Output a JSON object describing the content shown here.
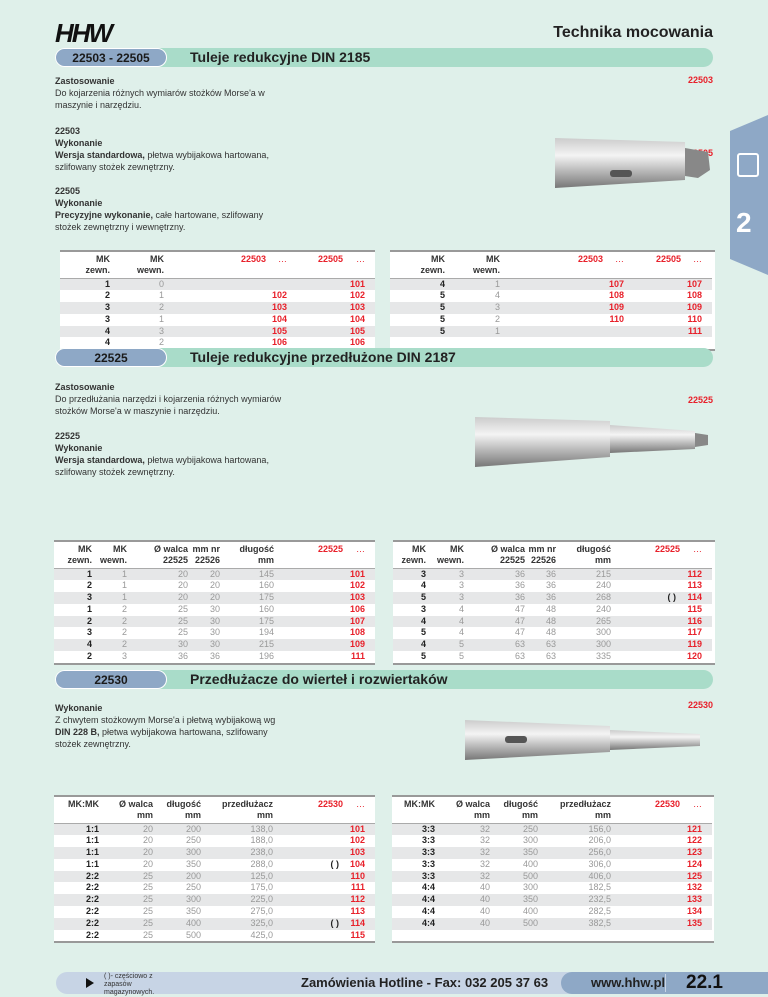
{
  "header": {
    "logo": "HHW",
    "category": "Technika mocowania"
  },
  "side_tab": {
    "number": "2",
    "icon": "chuck-icon",
    "color": "#8ea8c6"
  },
  "colors": {
    "background": "#dff0ea",
    "section_bar": "#a9dcc9",
    "section_pill": "#8ea8c6",
    "code_red": "#e8202a"
  },
  "sections": [
    {
      "codes": "22503 - 22505",
      "title": "Tuleje redukcyjne DIN 2185",
      "app_label": "Zastosowanie",
      "app_text": "Do kojarzenia różnych wymiarów stożków Morse'a w maszynie i narzędziu.",
      "variants": [
        {
          "code": "22503",
          "label": "Wykonanie",
          "bold": "Wersja standardowa,",
          "text": " płetwa wybijakowa hartowana, szlifowany stożek zewnętrzny."
        },
        {
          "code": "22505",
          "label": "Wykonanie",
          "bold": "Precyzyjne wykonanie,",
          "text": " całe hartowane, szlifowany stożek zewnętrzny i wewnętrzny."
        }
      ],
      "image_labels": [
        "22503",
        "22505"
      ],
      "table": {
        "headers": [
          [
            "MK",
            "zewn."
          ],
          [
            "MK",
            "wewn."
          ],
          [
            "22503",
            ""
          ],
          [
            "…",
            ""
          ],
          [
            "22505",
            ""
          ],
          [
            "…",
            ""
          ]
        ],
        "left": [
          [
            "1",
            "0",
            "",
            "",
            "",
            "101"
          ],
          [
            "2",
            "1",
            "",
            "102",
            "",
            "102"
          ],
          [
            "3",
            "2",
            "",
            "103",
            "",
            "103"
          ],
          [
            "3",
            "1",
            "",
            "104",
            "",
            "104"
          ],
          [
            "4",
            "3",
            "",
            "105",
            "",
            "105"
          ],
          [
            "4",
            "2",
            "",
            "106",
            "",
            "106"
          ]
        ],
        "right": [
          [
            "4",
            "1",
            "",
            "107",
            "",
            "107"
          ],
          [
            "5",
            "4",
            "",
            "108",
            "",
            "108"
          ],
          [
            "5",
            "3",
            "",
            "109",
            "",
            "109"
          ],
          [
            "5",
            "2",
            "",
            "110",
            "",
            "110"
          ],
          [
            "5",
            "1",
            "",
            "",
            "",
            "111"
          ],
          [
            "",
            "",
            "",
            "",
            "",
            ""
          ]
        ]
      }
    },
    {
      "codes": "22525",
      "title": "Tuleje redukcyjne przedłużone DIN 2187",
      "app_label": "Zastosowanie",
      "app_text": "Do przedłużania narzędzi i kojarzenia różnych wymiarów stożków Morse'a w maszynie i narzędziu.",
      "variants": [
        {
          "code": "22525",
          "label": "Wykonanie",
          "bold": "Wersja standardowa,",
          "text": " płetwa wybijakowa hartowana, szlifowany stożek zewnętrzny."
        }
      ],
      "image_labels": [
        "22525"
      ],
      "table": {
        "headers": [
          [
            "MK",
            "zewn."
          ],
          [
            "MK",
            "wewn."
          ],
          [
            "Ø walca",
            "22525"
          ],
          [
            "mm nr",
            "22526"
          ],
          [
            "długość",
            "mm"
          ],
          [
            "22525",
            ""
          ],
          [
            "…",
            ""
          ]
        ],
        "left": [
          [
            "1",
            "1",
            "20",
            "20",
            "145",
            "",
            "101"
          ],
          [
            "2",
            "1",
            "20",
            "20",
            "160",
            "",
            "102"
          ],
          [
            "3",
            "1",
            "20",
            "20",
            "175",
            "",
            "103"
          ],
          [
            "1",
            "2",
            "25",
            "30",
            "160",
            "",
            "106"
          ],
          [
            "2",
            "2",
            "25",
            "30",
            "175",
            "",
            "107"
          ],
          [
            "3",
            "2",
            "25",
            "30",
            "194",
            "",
            "108"
          ],
          [
            "4",
            "2",
            "30",
            "30",
            "215",
            "",
            "109"
          ],
          [
            "2",
            "3",
            "36",
            "36",
            "196",
            "",
            "111"
          ]
        ],
        "right": [
          [
            "3",
            "3",
            "36",
            "36",
            "215",
            "",
            "112"
          ],
          [
            "4",
            "3",
            "36",
            "36",
            "240",
            "",
            "113"
          ],
          [
            "5",
            "3",
            "36",
            "36",
            "268",
            "( )",
            "114"
          ],
          [
            "3",
            "4",
            "47",
            "48",
            "240",
            "",
            "115"
          ],
          [
            "4",
            "4",
            "47",
            "48",
            "265",
            "",
            "116"
          ],
          [
            "5",
            "4",
            "47",
            "48",
            "300",
            "",
            "117"
          ],
          [
            "4",
            "5",
            "63",
            "63",
            "300",
            "",
            "119"
          ],
          [
            "5",
            "5",
            "63",
            "63",
            "335",
            "",
            "120"
          ]
        ]
      }
    },
    {
      "codes": "22530",
      "title": "Przedłużacze do wierteł i rozwiertaków",
      "app_label": "Wykonanie",
      "app_text_parts": [
        "Z chwytem stożkowym Morse'a i płetwą wybijakową wg ",
        "DIN 228 B,",
        " płetwa wybijakowa hartowana, szlifowany stożek zewnętrzny."
      ],
      "image_labels": [
        "22530"
      ],
      "table": {
        "headers": [
          [
            "MK:MK",
            ""
          ],
          [
            "Ø walca",
            "mm"
          ],
          [
            "długość",
            "mm"
          ],
          [
            "przedłużacz",
            "mm"
          ],
          [
            "22530",
            ""
          ],
          [
            "…",
            ""
          ]
        ],
        "left": [
          [
            "1:1",
            "20",
            "200",
            "138,0",
            "",
            "101"
          ],
          [
            "1:1",
            "20",
            "250",
            "188,0",
            "",
            "102"
          ],
          [
            "1:1",
            "20",
            "300",
            "238,0",
            "",
            "103"
          ],
          [
            "1:1",
            "20",
            "350",
            "288,0",
            "( )",
            "104"
          ],
          [
            "2:2",
            "25",
            "200",
            "125,0",
            "",
            "110"
          ],
          [
            "2:2",
            "25",
            "250",
            "175,0",
            "",
            "111"
          ],
          [
            "2:2",
            "25",
            "300",
            "225,0",
            "",
            "112"
          ],
          [
            "2:2",
            "25",
            "350",
            "275,0",
            "",
            "113"
          ],
          [
            "2:2",
            "25",
            "400",
            "325,0",
            "( )",
            "114"
          ],
          [
            "2:2",
            "25",
            "500",
            "425,0",
            "",
            "115"
          ]
        ],
        "right": [
          [
            "3:3",
            "32",
            "250",
            "156,0",
            "",
            "121"
          ],
          [
            "3:3",
            "32",
            "300",
            "206,0",
            "",
            "122"
          ],
          [
            "3:3",
            "32",
            "350",
            "256,0",
            "",
            "123"
          ],
          [
            "3:3",
            "32",
            "400",
            "306,0",
            "",
            "124"
          ],
          [
            "3:3",
            "32",
            "500",
            "406,0",
            "",
            "125"
          ],
          [
            "4:4",
            "40",
            "300",
            "182,5",
            "",
            "132"
          ],
          [
            "4:4",
            "40",
            "350",
            "232,5",
            "",
            "133"
          ],
          [
            "4:4",
            "40",
            "400",
            "282,5",
            "",
            "134"
          ],
          [
            "4:4",
            "40",
            "500",
            "382,5",
            "",
            "135"
          ],
          [
            "",
            "",
            "",
            "",
            "",
            ""
          ]
        ]
      }
    }
  ],
  "footer": {
    "note": "( )- częściowo z zapasów magazynowych.",
    "hotline": "Zamówienia Hotline - Fax: 032 205 37 63",
    "website": "www.hhw.pl",
    "page": "22.1"
  }
}
